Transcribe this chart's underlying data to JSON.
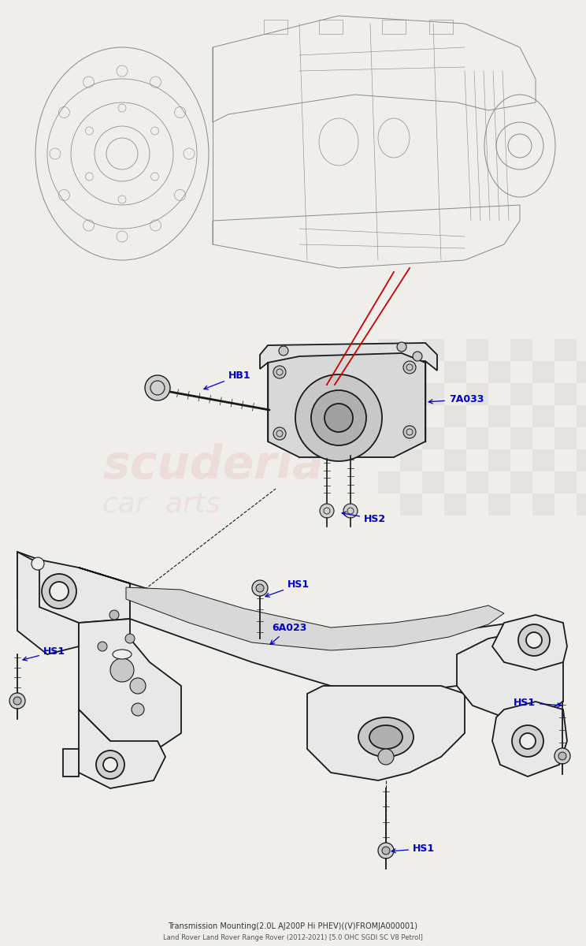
{
  "bg_color": "#f0eeea",
  "label_color": "#0000cc",
  "line_color": "#1a1a1a",
  "trans_color": "#888888",
  "red_color": "#cc0000",
  "title_main": "Transmission Mounting(2.0L AJ200P Hi PHEV)((V)FROMJA000001)",
  "title_sub": "Land Rover Land Rover Range Rover (2012-2021) [5.0 OHC SGDI SC V8 Petrol]",
  "watermark_text1": "scuderia",
  "watermark_text2": "car  arts",
  "label_fontsize": 9,
  "title_fontsize": 7
}
